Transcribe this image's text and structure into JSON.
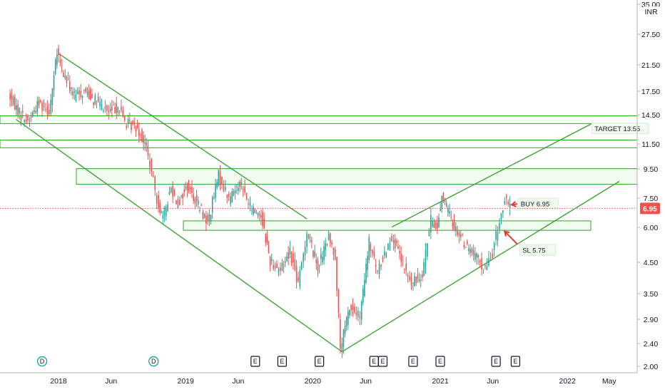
{
  "chart_data": {
    "type": "candlestick",
    "currency": "INR",
    "y_axis": {
      "scale": "log",
      "range": [
        1.95,
        36
      ],
      "ticks": [
        "35.00",
        "27.50",
        "21.50",
        "17.50",
        "14.50",
        "11.50",
        "9.50",
        "7.50",
        "6.00",
        "4.50",
        "3.50",
        "2.90",
        "2.40",
        "2.00"
      ]
    },
    "x_axis": {
      "ticks": [
        {
          "label": "2018",
          "date": "2018-01-01"
        },
        {
          "label": "Jun",
          "date": "2018-06-01"
        },
        {
          "label": "2019",
          "date": "2019-01-01"
        },
        {
          "label": "Jun",
          "date": "2019-06-01"
        },
        {
          "label": "2020",
          "date": "2020-01-01"
        },
        {
          "label": "Jun",
          "date": "2020-06-01"
        },
        {
          "label": "2021",
          "date": "2021-01-01"
        },
        {
          "label": "Jun",
          "date": "2021-06-01"
        },
        {
          "label": "2022",
          "date": "2022-01-01"
        },
        {
          "label": "May",
          "date": "2022-05-01"
        }
      ]
    },
    "last_price": {
      "value": 6.95,
      "label": "6.95"
    },
    "price_path": [
      [
        "2017-08-15",
        17.0
      ],
      [
        "2017-09-20",
        14.5
      ],
      [
        "2017-10-10",
        13.8
      ],
      [
        "2017-11-10",
        16.0
      ],
      [
        "2017-12-10",
        15.0
      ],
      [
        "2018-01-01",
        23.5
      ],
      [
        "2018-01-20",
        20.0
      ],
      [
        "2018-02-20",
        16.8
      ],
      [
        "2018-03-25",
        17.5
      ],
      [
        "2018-04-25",
        16.0
      ],
      [
        "2018-05-30",
        14.8
      ],
      [
        "2018-06-25",
        15.5
      ],
      [
        "2018-07-20",
        13.5
      ],
      [
        "2018-08-20",
        13.2
      ],
      [
        "2018-09-15",
        11.2
      ],
      [
        "2018-10-15",
        7.5
      ],
      [
        "2018-11-01",
        6.4
      ],
      [
        "2018-11-25",
        8.2
      ],
      [
        "2018-12-15",
        7.2
      ],
      [
        "2019-01-10",
        8.3
      ],
      [
        "2019-02-15",
        7.0
      ],
      [
        "2019-03-10",
        6.2
      ],
      [
        "2019-04-10",
        9.0
      ],
      [
        "2019-05-10",
        7.5
      ],
      [
        "2019-06-10",
        8.6
      ],
      [
        "2019-07-10",
        7.0
      ],
      [
        "2019-08-10",
        6.6
      ],
      [
        "2019-09-05",
        4.6
      ],
      [
        "2019-10-05",
        4.3
      ],
      [
        "2019-11-01",
        5.0
      ],
      [
        "2019-11-25",
        3.8
      ],
      [
        "2019-12-20",
        5.8
      ],
      [
        "2020-01-20",
        4.4
      ],
      [
        "2020-02-20",
        5.5
      ],
      [
        "2020-03-10",
        4.8
      ],
      [
        "2020-03-25",
        2.3
      ],
      [
        "2020-04-20",
        3.2
      ],
      [
        "2020-05-20",
        2.95
      ],
      [
        "2020-06-15",
        5.3
      ],
      [
        "2020-07-10",
        4.2
      ],
      [
        "2020-07-30",
        4.9
      ],
      [
        "2020-08-20",
        5.6
      ],
      [
        "2020-09-15",
        4.6
      ],
      [
        "2020-10-15",
        3.8
      ],
      [
        "2020-11-15",
        4.2
      ],
      [
        "2020-12-10",
        6.3
      ],
      [
        "2020-12-28",
        6.0
      ],
      [
        "2021-01-10",
        7.7
      ],
      [
        "2021-02-10",
        6.2
      ],
      [
        "2021-03-15",
        5.3
      ],
      [
        "2021-04-20",
        4.7
      ],
      [
        "2021-05-15",
        4.3
      ],
      [
        "2021-06-05",
        4.9
      ],
      [
        "2021-06-25",
        6.3
      ],
      [
        "2021-07-10",
        7.4
      ],
      [
        "2021-07-25",
        6.95
      ]
    ],
    "zones": [
      {
        "y1": 14.4,
        "y2": 13.55
      },
      {
        "y1": 11.9,
        "y2": 11.2
      },
      {
        "y1": 9.5,
        "y2": 8.4
      },
      {
        "y1": 6.3,
        "y2": 5.85
      }
    ],
    "trendlines": [
      {
        "from": [
          "2018-01-01",
          23.5
        ],
        "to": [
          "2019-12-15",
          6.4
        ]
      },
      {
        "from": [
          "2017-09-01",
          14.0
        ],
        "to": [
          "2020-03-25",
          2.25
        ]
      },
      {
        "from": [
          "2020-03-25",
          2.25
        ],
        "to": [
          "2022-05-30",
          8.6
        ]
      },
      {
        "from": [
          "2020-08-15",
          6.0
        ],
        "to": [
          "2022-03-10",
          13.5
        ]
      }
    ],
    "annotations": [
      {
        "text": "TARGET 13.55",
        "date": "2022-03-20",
        "price": 13.0
      },
      {
        "text": "BUY 6.95",
        "date": "2021-08-20",
        "price": 7.2
      },
      {
        "text": "SL 5.75",
        "date": "2021-08-25",
        "price": 5.0
      }
    ],
    "arrows": [
      {
        "from": [
          "2021-08-10",
          7.2
        ],
        "to": [
          "2021-07-25",
          7.15
        ]
      },
      {
        "from": [
          "2021-08-10",
          5.25
        ],
        "to": [
          "2021-07-05",
          5.8
        ]
      }
    ],
    "events": [
      {
        "type": "D",
        "date": "2017-11-15"
      },
      {
        "type": "D",
        "date": "2018-10-01"
      },
      {
        "type": "E",
        "date": "2019-07-20"
      },
      {
        "type": "E",
        "date": "2019-10-05"
      },
      {
        "type": "E",
        "date": "2020-01-20"
      },
      {
        "type": "E",
        "date": "2020-06-25"
      },
      {
        "type": "E",
        "date": "2020-07-20"
      },
      {
        "type": "E",
        "date": "2020-10-15"
      },
      {
        "type": "E",
        "date": "2021-01-01"
      },
      {
        "type": "E",
        "date": "2021-06-10"
      },
      {
        "type": "E",
        "date": "2021-08-05"
      }
    ],
    "colors": {
      "up": "#26a69a",
      "down": "#ef5350",
      "lines": "#33a02c",
      "zone_fill": "#f1faee",
      "last_price": "#ef5350",
      "grid": "#e0e3eb",
      "text": "#131722"
    }
  }
}
